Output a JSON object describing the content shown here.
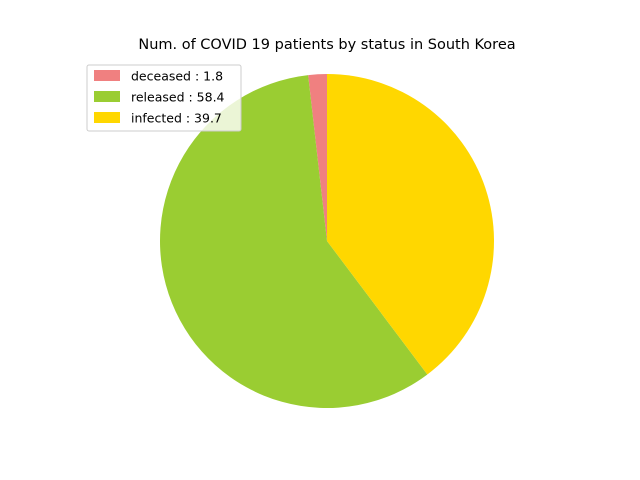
{
  "chart_data": {
    "type": "pie",
    "title": "Num. of COVID 19 patients by status in South Korea",
    "slices": [
      {
        "label": "deceased",
        "value": 1.8,
        "color": "#f08080",
        "legend": "deceased : 1.8"
      },
      {
        "label": "released",
        "value": 58.4,
        "color": "#9acd32",
        "legend": "released : 58.4"
      },
      {
        "label": "infected",
        "value": 39.7,
        "color": "#ffd700",
        "legend": "infected : 39.7"
      }
    ],
    "start_angle_deg": 90,
    "direction": "counterclockwise",
    "legend_location": "upper-left"
  }
}
